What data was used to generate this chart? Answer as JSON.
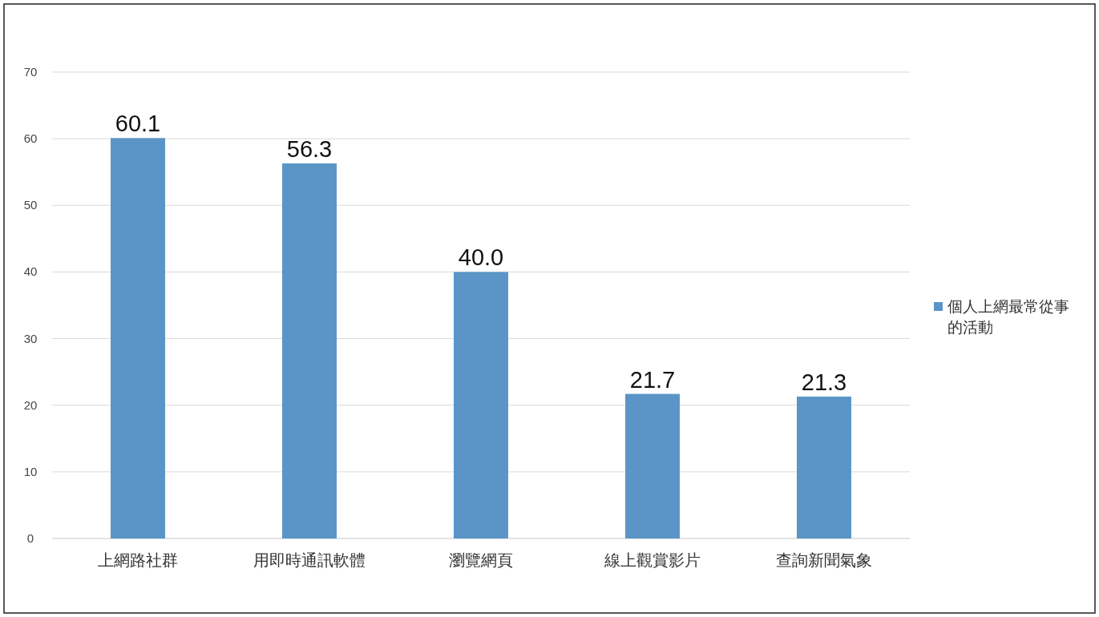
{
  "chart_data": {
    "type": "bar",
    "categories": [
      "上網路社群",
      "用即時通訊軟體",
      "瀏覽網頁",
      "線上觀賞影片",
      "查詢新聞氣象"
    ],
    "series": [
      {
        "name": "個人上網最常從事的活動",
        "color": "#5b95c7",
        "values": [
          60.1,
          56.3,
          40.0,
          21.7,
          21.3
        ]
      }
    ],
    "value_labels": [
      "60.1",
      "56.3",
      "40.0",
      "21.7",
      "21.3"
    ],
    "ylim": [
      0,
      70
    ],
    "yticks": [
      0,
      10,
      20,
      30,
      40,
      50,
      60,
      70
    ],
    "grid": "y",
    "legend": "right"
  }
}
